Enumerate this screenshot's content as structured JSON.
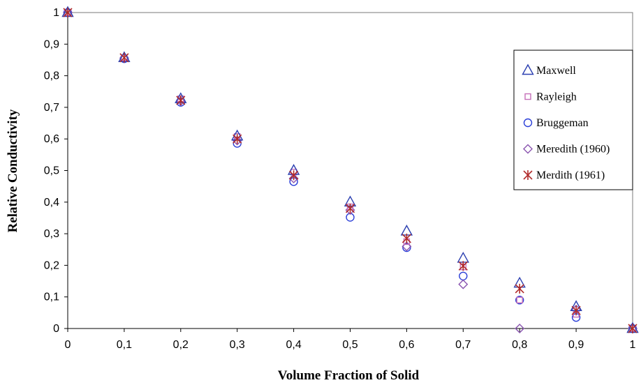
{
  "chart_data": {
    "type": "scatter",
    "title": "",
    "xlabel": "Volume Fraction of Solid",
    "ylabel": "Relative Conductivity",
    "xlim": [
      0,
      1
    ],
    "ylim": [
      0,
      1
    ],
    "x_ticks": [
      "0",
      "0,1",
      "0,2",
      "0,3",
      "0,4",
      "0,5",
      "0,6",
      "0,7",
      "0,8",
      "0,9",
      "1"
    ],
    "y_ticks": [
      "0",
      "0,1",
      "0,2",
      "0,3",
      "0,4",
      "0,5",
      "0,6",
      "0,7",
      "0,8",
      "0,9",
      "1"
    ],
    "grid": false,
    "legend_position": "right",
    "x": [
      0,
      0.1,
      0.2,
      0.3,
      0.4,
      0.5,
      0.6,
      0.7,
      0.8,
      0.9,
      1
    ],
    "series": [
      {
        "name": "Maxwell",
        "marker": "triangle",
        "color": "#2b3fb0",
        "values": [
          1.0,
          0.857,
          0.727,
          0.609,
          0.5,
          0.4,
          0.308,
          0.222,
          0.143,
          0.069,
          0.0
        ]
      },
      {
        "name": "Rayleigh",
        "marker": "square",
        "color": "#c56fb8",
        "values": [
          1.0,
          0.857,
          0.727,
          0.608,
          0.495,
          0.385,
          0.275,
          0.195,
          0.09,
          0.045,
          0.0
        ]
      },
      {
        "name": "Bruggeman",
        "marker": "circle",
        "color": "#2b3fd8",
        "values": [
          1.0,
          0.854,
          0.716,
          0.586,
          0.465,
          0.352,
          0.256,
          0.166,
          0.09,
          0.035,
          0.0
        ]
      },
      {
        "name": "Meredith (1960)",
        "marker": "diamond",
        "color": "#8a55b0",
        "values": [
          1.0,
          0.856,
          0.72,
          0.595,
          0.475,
          0.375,
          0.26,
          0.14,
          0.0,
          0.06,
          0.0
        ]
      },
      {
        "name": "Merdith (1961)",
        "marker": "asterisk",
        "color": "#b02a2a",
        "values": [
          1.0,
          0.857,
          0.722,
          0.6,
          0.485,
          0.38,
          0.285,
          0.198,
          0.126,
          0.057,
          0.0
        ]
      }
    ]
  }
}
